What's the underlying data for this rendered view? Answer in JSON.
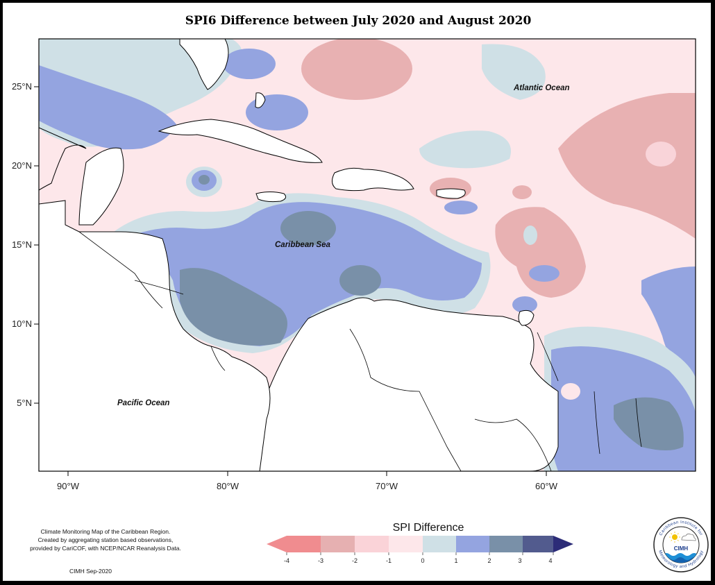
{
  "title": "SPI6 Difference between July 2020 and August 2020",
  "map": {
    "lat_ticks": [
      "25°N",
      "20°N",
      "15°N",
      "10°N",
      "5°N"
    ],
    "lon_ticks": [
      "90°W",
      "80°W",
      "70°W",
      "60°W"
    ],
    "labels": {
      "atlantic": "Atlantic Ocean",
      "caribbean": "Caribbean Sea",
      "pacific": "Pacific Ocean"
    }
  },
  "legend": {
    "title": "SPI Difference",
    "ticks": [
      "-4",
      "-3",
      "-2",
      "-1",
      "0",
      "1",
      "2",
      "3",
      "4"
    ],
    "colors": [
      "#f08c8f",
      "#e6b0b1",
      "#fad3d8",
      "#fde7ea",
      "#cfe0e6",
      "#94a4e0",
      "#7990a8",
      "#525b8e",
      "#2c2c78"
    ]
  },
  "palette": {
    "strong_dry": "#e8b1b2",
    "dry": "#f9d4d9",
    "slight_dry": "#fde7ea",
    "neutral": "#fdf3f4",
    "slight_wet": "#cfe0e6",
    "wet": "#94a4e0",
    "very_wet": "#7990a8"
  },
  "credits": {
    "line1": "Climate Monitoring Map of the Caribbean Region.",
    "line2": "Created by aggregating station based observations,",
    "line3": "provided by CariCOF, with NCEP/NCAR Reanalysis Data.",
    "signature": "CIMH Sep-2020"
  },
  "logo": {
    "name": "CIMH",
    "ring_top": "Caribbean Institute for",
    "ring_bottom": "Meteorology and Hydrology"
  }
}
